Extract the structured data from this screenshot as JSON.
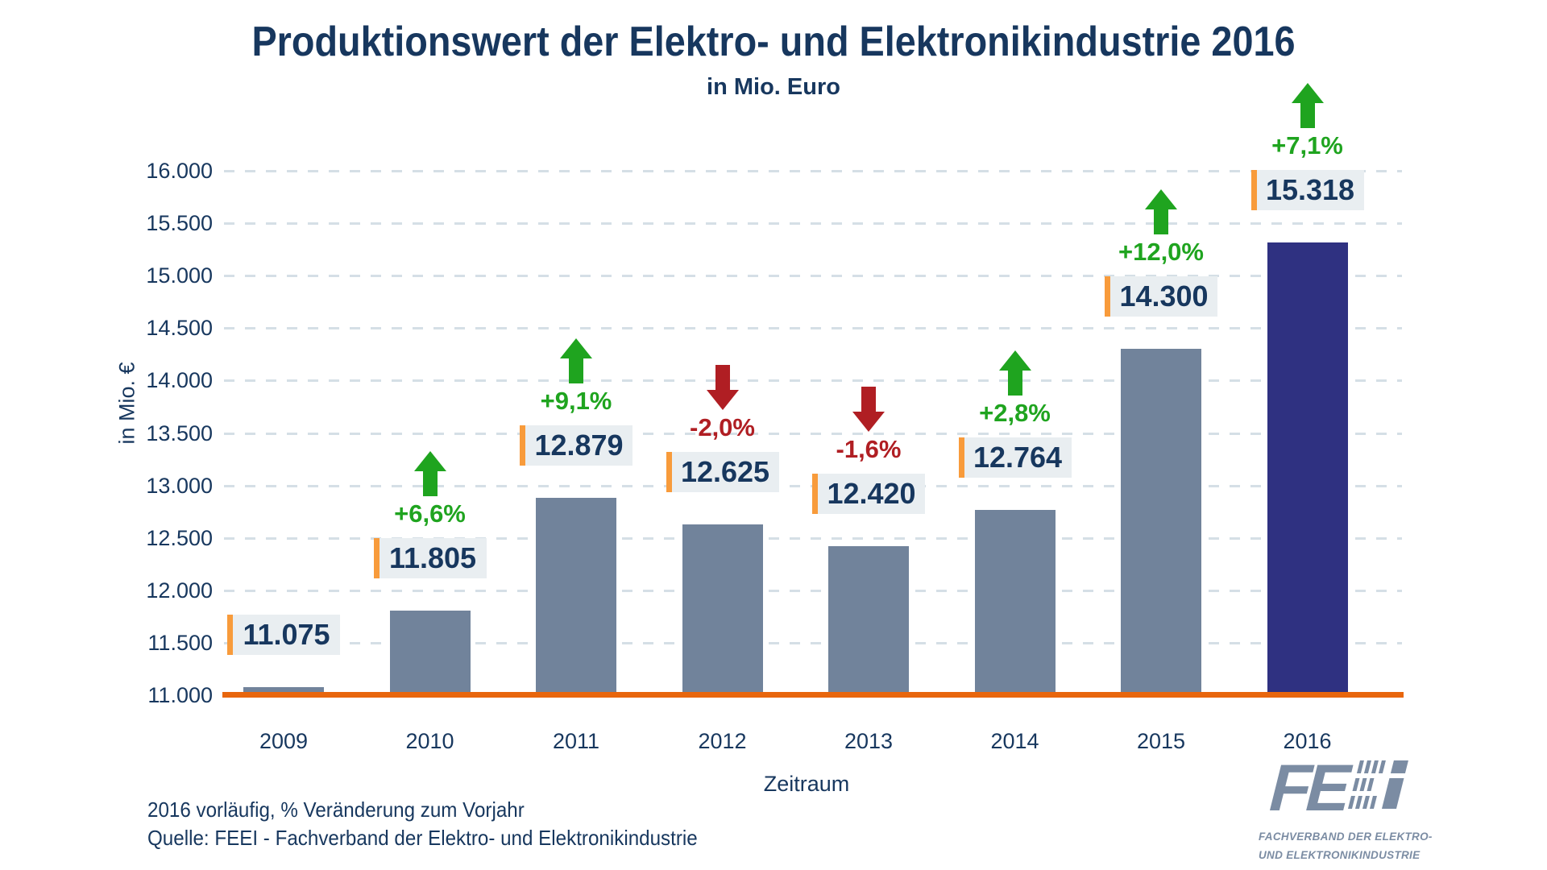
{
  "chart_data": {
    "type": "bar",
    "title": "Produktionswert der Elektro- und Elektronikindustrie 2016",
    "subtitle": "in Mio. Euro",
    "xlabel": "Zeitraum",
    "ylabel": "in Mio. €",
    "ylim": [
      11000,
      16000
    ],
    "ytick_step": 500,
    "yticks": [
      "16.000",
      "15.500",
      "15.000",
      "14.500",
      "14.000",
      "13.500",
      "13.000",
      "12.500",
      "12.000",
      "11.500",
      "11.000"
    ],
    "grid": "dashed-horizontal",
    "legend": "none",
    "categories": [
      "2009",
      "2010",
      "2011",
      "2012",
      "2013",
      "2014",
      "2015",
      "2016"
    ],
    "values": [
      11075,
      11805,
      12879,
      12625,
      12420,
      12764,
      14300,
      15318
    ],
    "bars": [
      {
        "year": "2009",
        "value": 11075,
        "label": "11.075",
        "change": null,
        "direction": null
      },
      {
        "year": "2010",
        "value": 11805,
        "label": "11.805",
        "change": "+6,6%",
        "direction": "up"
      },
      {
        "year": "2011",
        "value": 12879,
        "label": "12.879",
        "change": "+9,1%",
        "direction": "up"
      },
      {
        "year": "2012",
        "value": 12625,
        "label": "12.625",
        "change": "-2,0%",
        "direction": "down"
      },
      {
        "year": "2013",
        "value": 12420,
        "label": "12.420",
        "change": "-1,6%",
        "direction": "down"
      },
      {
        "year": "2014",
        "value": 12764,
        "label": "12.764",
        "change": "+2,8%",
        "direction": "up"
      },
      {
        "year": "2015",
        "value": 14300,
        "label": "14.300",
        "change": "+12,0%",
        "direction": "up"
      },
      {
        "year": "2016",
        "value": 15318,
        "label": "15.318",
        "change": "+7,1%",
        "direction": "up"
      }
    ],
    "highlight_index": 7,
    "colors": {
      "bar": "#71839B",
      "highlight_bar": "#2F3181",
      "up": "#1FA41F",
      "down": "#B01E23",
      "baseline": "#E8660D",
      "value_label_border": "#F89B3B",
      "value_label_bg": "#E9EEF1",
      "text": "#17375E",
      "grid": "#D5DFE6"
    }
  },
  "footnotes": [
    "2016 vorläufig, % Veränderung zum Vorjahr",
    "Quelle: FEEI - Fachverband der Elektro- und Elektronikindustrie"
  ],
  "logo": {
    "mark": "FE",
    "lines": [
      "FACHVERBAND DER ELEKTRO-",
      "UND ELEKTRONIKINDUSTRIE"
    ]
  }
}
